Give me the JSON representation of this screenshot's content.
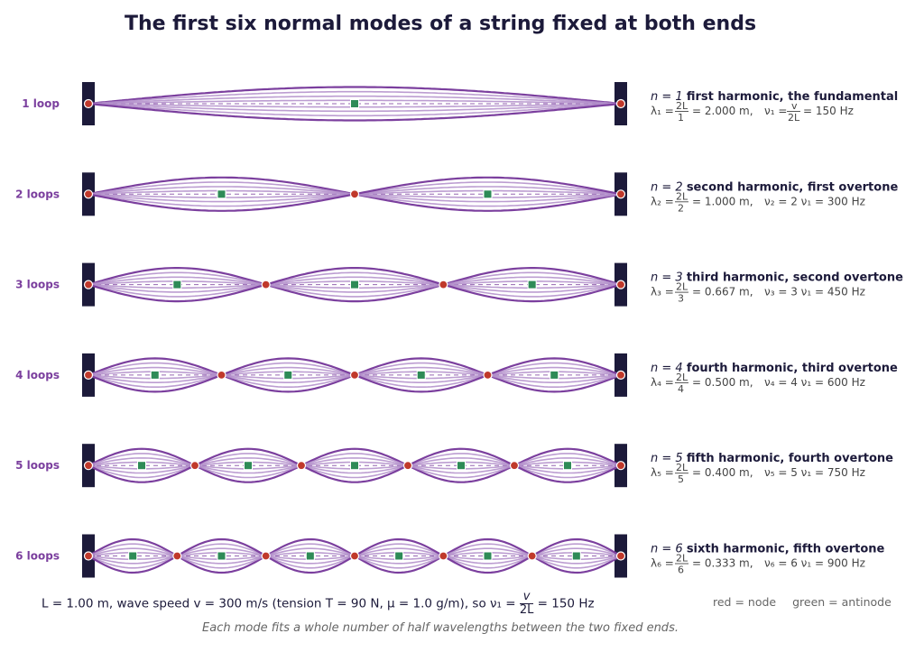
{
  "title": "The first six normal modes of a string fixed at both ends",
  "modes": [
    {
      "n": 1,
      "label": "1 loop",
      "desc": "first harmonic,  the fundamental",
      "lambda": "2.000 m",
      "freq": "150 Hz"
    },
    {
      "n": 2,
      "label": "2 loops",
      "desc": "second harmonic,  first overtone",
      "lambda": "1.000 m",
      "freq": "300 Hz"
    },
    {
      "n": 3,
      "label": "3 loops",
      "desc": "third harmonic,  second overtone",
      "lambda": "0.667 m",
      "freq": "450 Hz"
    },
    {
      "n": 4,
      "label": "4 loops",
      "desc": "fourth harmonic,  third overtone",
      "lambda": "0.500 m",
      "freq": "600 Hz"
    },
    {
      "n": 5,
      "label": "5 loops",
      "desc": "fifth harmonic,  fourth overtone",
      "lambda": "0.400 m",
      "freq": "750 Hz"
    },
    {
      "n": 6,
      "label": "6 loops",
      "desc": "sixth harmonic,  fifth overtone",
      "lambda": "0.333 m",
      "freq": "900 Hz"
    }
  ],
  "footer": {
    "params": "L = 1.00 m,   wave speed v = 300 m/s (tension T = 90 N, μ = 1.0 g/m),   so ν₁ =",
    "frac_top": "v",
    "frac_bottom": "2L",
    "result": "= 150 Hz",
    "legend_node": "red = node",
    "legend_antinode": "green = antinode",
    "caption": "Each mode fits a whole number of half wavelengths between the two fixed ends."
  },
  "colors": {
    "string": "#7b3f9e",
    "string_light": "#b08cc9",
    "clamp": "#1c1a3a",
    "node": "#c0392b",
    "antinode": "#2e8b57"
  }
}
